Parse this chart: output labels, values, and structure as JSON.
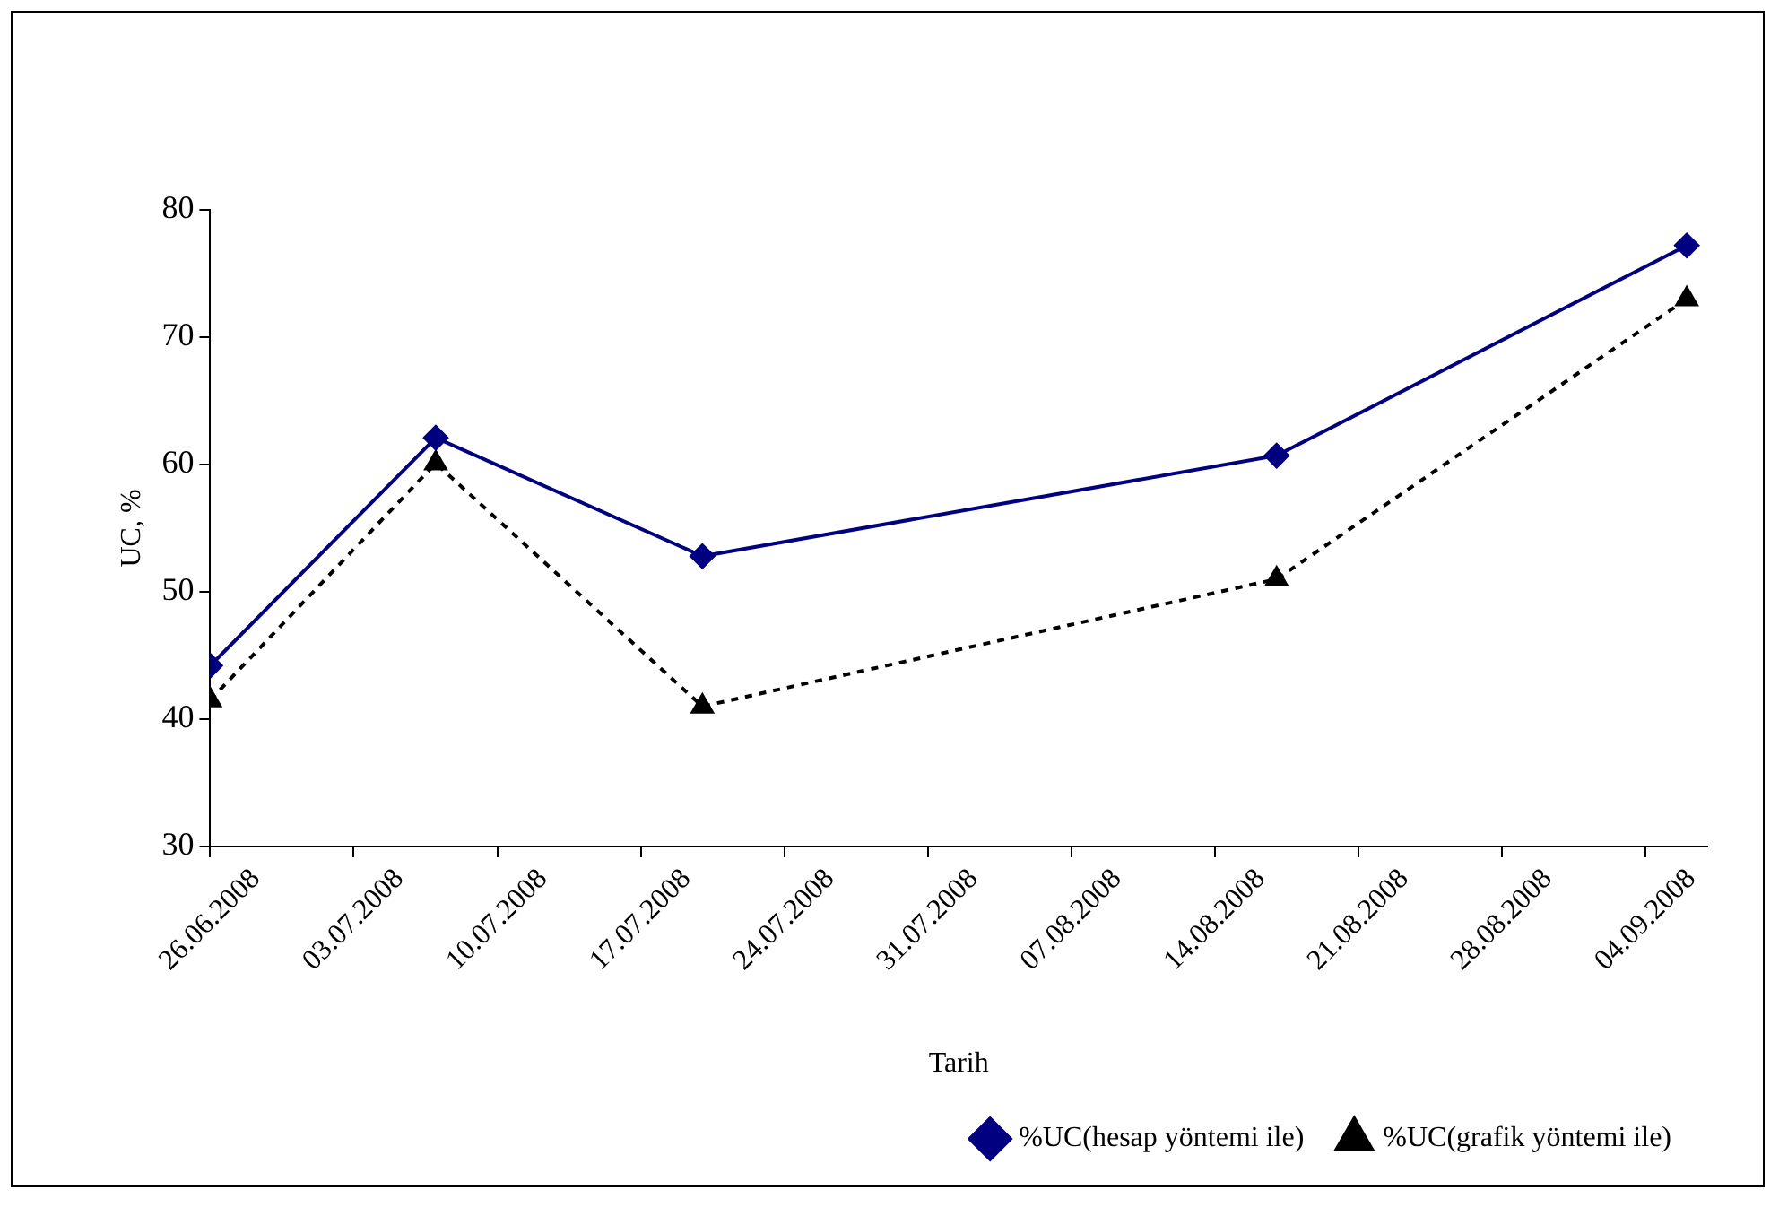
{
  "chart_data": {
    "type": "line",
    "xlabel": "Tarih",
    "ylabel": "UC, %",
    "x": [
      "2008-06-26",
      "2008-07-07",
      "2008-07-20",
      "2008-08-17",
      "2008-09-06"
    ],
    "series": [
      {
        "name": "%UC(hesap yöntemi ile)",
        "color": "#000080",
        "values": [
          44.2,
          62.1,
          52.8,
          60.7,
          77.2
        ],
        "marker": "diamond",
        "line_style": "solid"
      },
      {
        "name": "%UC(grafik yöntemi ile)",
        "color": "#000000",
        "values": [
          41.5,
          60.1,
          41,
          51,
          73
        ],
        "marker": "triangle",
        "line_style": "dashed"
      }
    ],
    "xlim": [
      "2008-06-26",
      "2008-09-07"
    ],
    "xticks": [
      {
        "value": "2008-06-26",
        "label": "26.06.2008"
      },
      {
        "value": "2008-07-03",
        "label": "03.07.2008"
      },
      {
        "value": "2008-07-10",
        "label": "10.07.2008"
      },
      {
        "value": "2008-07-17",
        "label": "17.07.2008"
      },
      {
        "value": "2008-07-24",
        "label": "24.07.2008"
      },
      {
        "value": "2008-07-31",
        "label": "31.07.2008"
      },
      {
        "value": "2008-08-07",
        "label": "07.08.2008"
      },
      {
        "value": "2008-08-14",
        "label": "14.08.2008"
      },
      {
        "value": "2008-08-21",
        "label": "21.08.2008"
      },
      {
        "value": "2008-08-28",
        "label": "28.08.2008"
      },
      {
        "value": "2008-09-04",
        "label": "04.09.2008"
      }
    ],
    "ylim": [
      30,
      80
    ],
    "yticks": [
      30,
      40,
      50,
      60,
      70,
      80
    ],
    "grid": false,
    "legend": "bottom"
  }
}
